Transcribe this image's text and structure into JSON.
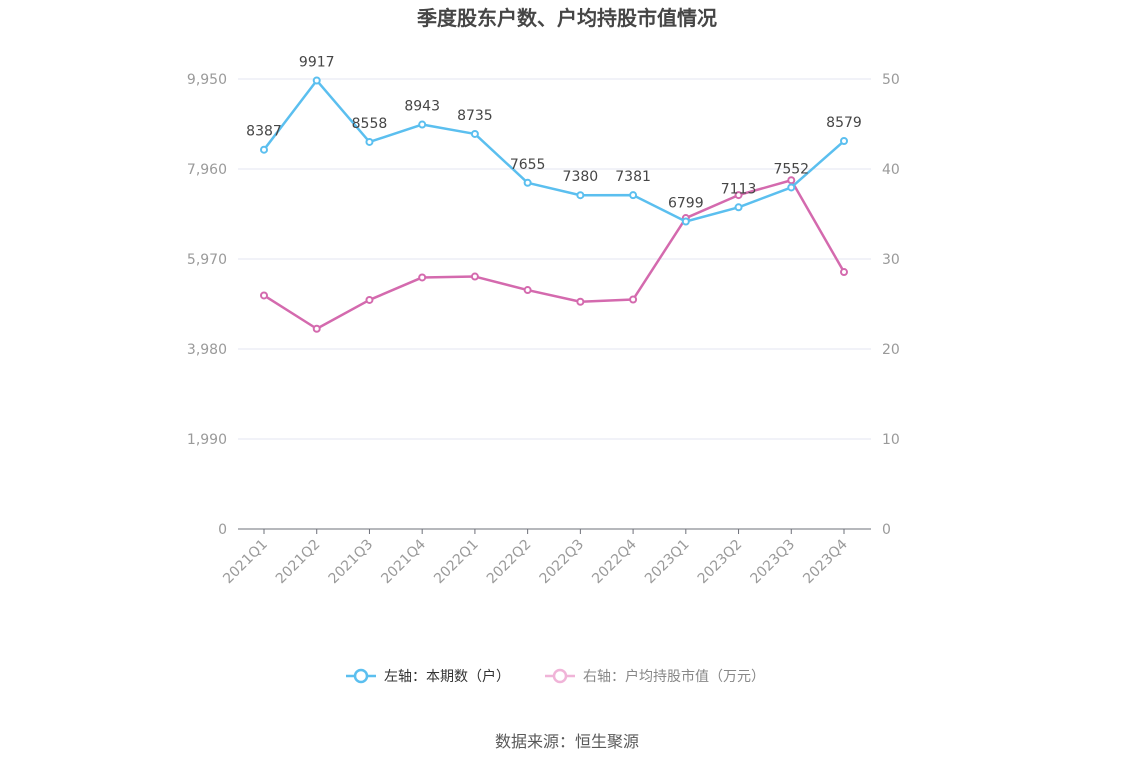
{
  "chart_data": {
    "type": "line",
    "title": "季度股东户数、户均持股市值情况",
    "categories": [
      "2021Q1",
      "2021Q2",
      "2021Q3",
      "2021Q4",
      "2022Q1",
      "2022Q2",
      "2022Q3",
      "2022Q4",
      "2023Q1",
      "2023Q2",
      "2023Q3",
      "2023Q4"
    ],
    "left_axis": {
      "min": 0,
      "max": 9950,
      "ticks": [
        "0",
        "1,990",
        "3,980",
        "5,970",
        "7,960",
        "9,950"
      ]
    },
    "right_axis": {
      "min": 0,
      "max": 50,
      "ticks": [
        "0",
        "10",
        "20",
        "30",
        "40",
        "50"
      ]
    },
    "series": [
      {
        "name": "左轴：本期数（户）",
        "axis": "left",
        "color": "#5bbfef",
        "values": [
          8387,
          9917,
          8558,
          8943,
          8735,
          7655,
          7380,
          7381,
          6799,
          7113,
          7552,
          8579
        ],
        "labels": [
          "8387",
          "9917",
          "8558",
          "8943",
          "8735",
          "7655",
          "7380",
          "7381",
          "6799",
          "7113",
          "7552",
          "8579"
        ]
      },
      {
        "name": "右轴：户均持股市值（万元）",
        "axis": "right",
        "color": "#d46aae",
        "legend_color": "#f0b4d8",
        "values": [
          25.95,
          22.25,
          25.45,
          27.95,
          28.05,
          26.55,
          25.25,
          25.5,
          34.55,
          37.1,
          38.75,
          28.55
        ]
      }
    ],
    "grid": true,
    "legend_position": "bottom"
  },
  "source": "数据来源：恒生聚源"
}
